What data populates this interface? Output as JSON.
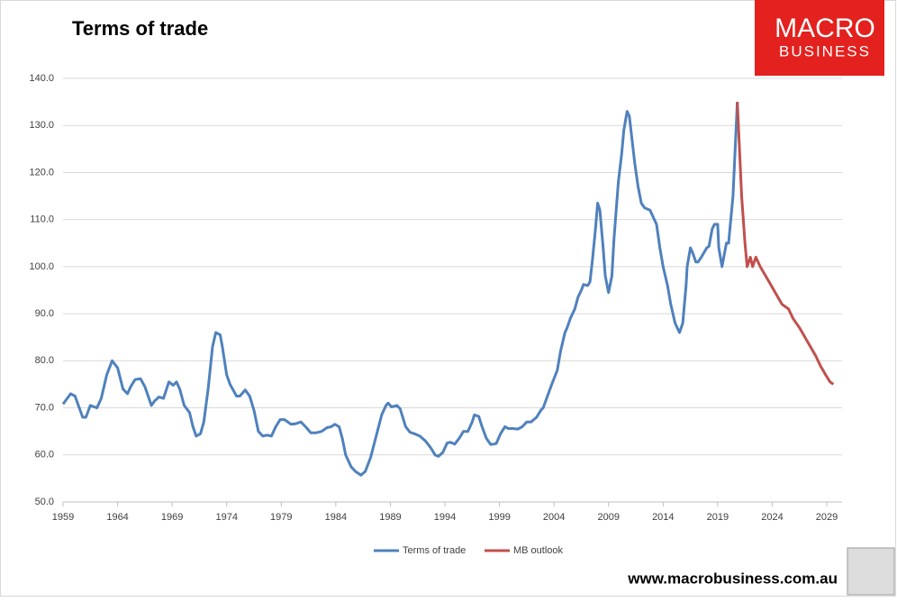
{
  "chart_data": {
    "type": "line",
    "title": "Terms of trade",
    "xlim": [
      1959,
      2030.4
    ],
    "xticks": [
      1959,
      1964,
      1969,
      1974,
      1979,
      1984,
      1989,
      1994,
      1999,
      2004,
      2009,
      2014,
      2019,
      2024,
      2029
    ],
    "ylim": [
      50,
      140
    ],
    "yticks": [
      {
        "value": 50,
        "label": "50.0"
      },
      {
        "value": 60,
        "label": "60.0"
      },
      {
        "value": 70,
        "label": "70.0"
      },
      {
        "value": 80,
        "label": "80.0"
      },
      {
        "value": 90,
        "label": "90.0"
      },
      {
        "value": 100,
        "label": "100.0"
      },
      {
        "value": 110,
        "label": "110.0"
      },
      {
        "value": 120,
        "label": "120.0"
      },
      {
        "value": 130,
        "label": "130.0"
      },
      {
        "value": 140,
        "label": "140.0"
      }
    ],
    "grid": true,
    "legend": "bottom",
    "series": [
      {
        "name": "Terms of trade",
        "color": "#4f81bd",
        "x": [
          1959.0,
          1959.7,
          1960.1,
          1960.8,
          1961.1,
          1961.5,
          1962.1,
          1962.5,
          1963.0,
          1963.5,
          1964.0,
          1964.5,
          1964.9,
          1965.2,
          1965.6,
          1966.1,
          1966.5,
          1967.1,
          1967.4,
          1967.8,
          1968.2,
          1968.7,
          1969.1,
          1969.4,
          1969.7,
          1970.1,
          1970.6,
          1970.9,
          1971.2,
          1971.6,
          1971.9,
          1972.3,
          1972.7,
          1973.0,
          1973.4,
          1973.6,
          1974.0,
          1974.3,
          1974.9,
          1975.2,
          1975.7,
          1976.1,
          1976.5,
          1976.9,
          1977.3,
          1977.7,
          1978.1,
          1978.5,
          1978.9,
          1979.3,
          1979.9,
          1980.3,
          1980.8,
          1981.3,
          1981.7,
          1982.2,
          1982.7,
          1983.2,
          1983.6,
          1983.9,
          1984.3,
          1984.6,
          1984.9,
          1985.4,
          1985.8,
          1986.3,
          1986.7,
          1987.2,
          1987.7,
          1988.2,
          1988.6,
          1988.8,
          1989.1,
          1989.6,
          1989.9,
          1990.4,
          1990.8,
          1991.2,
          1991.7,
          1992.2,
          1992.7,
          1993.1,
          1993.4,
          1993.8,
          1994.2,
          1994.5,
          1994.9,
          1995.3,
          1995.7,
          1996.1,
          1996.5,
          1996.7,
          1997.1,
          1997.4,
          1997.8,
          1998.2,
          1998.7,
          1999.1,
          1999.5,
          1999.8,
          2000.2,
          2000.7,
          2001.1,
          2001.5,
          2001.9,
          2002.4,
          2002.8,
          2003.0,
          2003.4,
          2003.8,
          2004.3,
          2004.6,
          2005.0,
          2005.2,
          2005.5,
          2005.9,
          2006.2,
          2006.5,
          2006.7,
          2007.1,
          2007.3,
          2007.5,
          2007.8,
          2008.0,
          2008.2,
          2008.5,
          2008.7,
          2009.0,
          2009.3,
          2009.5,
          2009.9,
          2010.2,
          2010.4,
          2010.7,
          2010.9,
          2011.1,
          2011.4,
          2011.7,
          2012.0,
          2012.3,
          2012.8,
          2013.2,
          2013.4,
          2013.7,
          2014.0,
          2014.4,
          2014.7,
          2015.1,
          2015.5,
          2015.8,
          2016.1,
          2016.2,
          2016.5,
          2016.7,
          2017.0,
          2017.2,
          2017.5,
          2018.0,
          2018.2,
          2018.5,
          2018.7,
          2019.0,
          2019.1,
          2019.4,
          2019.8,
          2020.0,
          2020.4,
          2020.8
        ],
        "values": [
          70.8,
          73,
          72.5,
          68,
          68,
          70.5,
          70,
          72,
          77,
          80,
          78.5,
          74,
          73,
          74.5,
          76,
          76.2,
          74.5,
          70.5,
          71.5,
          72.3,
          72,
          75.5,
          74.8,
          75.5,
          74,
          70.5,
          69,
          66,
          64,
          64.5,
          67,
          74,
          83,
          86,
          85.5,
          83,
          77,
          75,
          72.5,
          72.5,
          73.8,
          72.5,
          69.5,
          65,
          64,
          64.2,
          64,
          66,
          67.5,
          67.5,
          66.5,
          66.6,
          67,
          65.8,
          64.7,
          64.7,
          65,
          65.8,
          66,
          66.5,
          66,
          63.5,
          60,
          57.5,
          56.5,
          55.7,
          56.5,
          59.5,
          64,
          68.5,
          70.5,
          71,
          70.2,
          70.5,
          69.8,
          66,
          64.8,
          64.5,
          64,
          63,
          61.5,
          60,
          59.7,
          60.5,
          62.5,
          62.7,
          62.3,
          63.5,
          65,
          65,
          67,
          68.5,
          68.2,
          66,
          63.5,
          62.2,
          62.4,
          64.5,
          66,
          65.6,
          65.6,
          65.5,
          66,
          67,
          67,
          68,
          69.5,
          70,
          72.5,
          75,
          78,
          82,
          86,
          87,
          89,
          91,
          93.5,
          95,
          96.2,
          96,
          96.8,
          101,
          108,
          113.5,
          112,
          104,
          98,
          94.5,
          98,
          106,
          118,
          124,
          129,
          133,
          132,
          128,
          122,
          117,
          113.5,
          112.5,
          112,
          110,
          109,
          104,
          100,
          96,
          92,
          88,
          86,
          88,
          96,
          100,
          104,
          103,
          101,
          101,
          102,
          104,
          104.3,
          108,
          109,
          109,
          104,
          100,
          105,
          105,
          115,
          135
        ]
      },
      {
        "name": "MB outlook",
        "color": "#c0504d",
        "x": [
          2020.8,
          2021.2,
          2021.5,
          2021.7,
          2022.0,
          2022.2,
          2022.5,
          2022.9,
          2023.4,
          2023.9,
          2024.4,
          2024.9,
          2025.5,
          2025.9,
          2026.5,
          2027.0,
          2027.5,
          2028.0,
          2028.4,
          2028.9,
          2029.3,
          2029.6
        ],
        "values": [
          135,
          115,
          105,
          100,
          102,
          100,
          102,
          100,
          98,
          96,
          94,
          92,
          91,
          89,
          87,
          85,
          83,
          81,
          79,
          77,
          75.5,
          75
        ]
      }
    ]
  },
  "logo": {
    "line1": "MACRO",
    "line2": "BUSINESS"
  },
  "footer": "www.macrobusiness.com.au"
}
